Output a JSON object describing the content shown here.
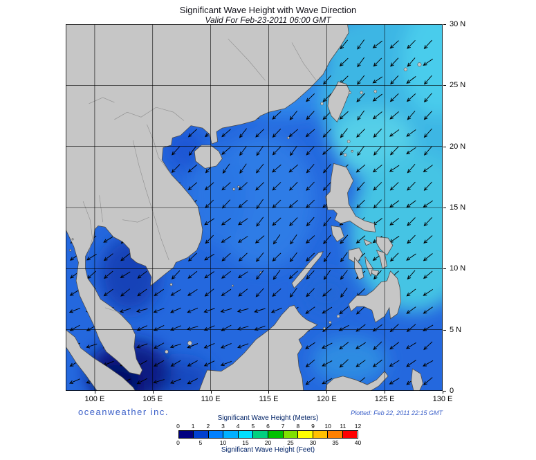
{
  "header": {
    "title": "Significant Wave Height with Wave Direction",
    "subtitle": "Valid For Feb-23-2011 06:00 GMT"
  },
  "map": {
    "extent": {
      "lon_min": 97.5,
      "lon_max": 130,
      "lat_min": 0,
      "lat_max": 30
    },
    "x_ticks": [
      {
        "label": "100 E",
        "lon": 100
      },
      {
        "label": "105 E",
        "lon": 105
      },
      {
        "label": "110 E",
        "lon": 110
      },
      {
        "label": "115 E",
        "lon": 115
      },
      {
        "label": "120 E",
        "lon": 120
      },
      {
        "label": "125 E",
        "lon": 125
      },
      {
        "label": "130 E",
        "lon": 130
      }
    ],
    "y_ticks": [
      {
        "label": "30 N",
        "lat": 30
      },
      {
        "label": "25 N",
        "lat": 25
      },
      {
        "label": "20 N",
        "lat": 20
      },
      {
        "label": "15 N",
        "lat": 15
      },
      {
        "label": "10 N",
        "lat": 10
      },
      {
        "label": "5 N",
        "lat": 5
      },
      {
        "label": "0",
        "lat": 0
      }
    ],
    "arrows": {
      "spacing_deg": 1.45,
      "length_deg": 0.95,
      "barb_deg": 0.3,
      "jitter_deg": 8,
      "lon_start": 98.3,
      "lat_start": 0.8,
      "default_dir": 224,
      "regions": [
        {
          "lon_min": 97.5,
          "lon_max": 116,
          "lat_min": 0,
          "lat_max": 7,
          "dir": 248
        },
        {
          "lon_min": 116,
          "lon_max": 130,
          "lat_min": 0,
          "lat_max": 7,
          "dir": 236
        },
        {
          "lon_min": 97.5,
          "lon_max": 113,
          "lat_min": 7,
          "lat_max": 15,
          "dir": 233
        },
        {
          "lon_min": 123,
          "lon_max": 130,
          "lat_min": 7,
          "lat_max": 30,
          "dir": 230
        }
      ]
    }
  },
  "footer": {
    "brand": "oceanweather inc.",
    "plotted": "Plotted: Feb 22, 2011 22:15 GMT"
  },
  "legend": {
    "meters_label": "Significant Wave Height (Meters)",
    "meters_ticks": [
      "0",
      "1",
      "2",
      "3",
      "4",
      "5",
      "6",
      "7",
      "8",
      "9",
      "10",
      "11",
      "12"
    ],
    "feet_label": "Significant Wave Height (Feet)",
    "feet_ticks": [
      "0",
      "5",
      "10",
      "15",
      "20",
      "25",
      "30",
      "35",
      "40"
    ],
    "colors": [
      "#000080",
      "#0040d0",
      "#0080ff",
      "#00b0ff",
      "#00e0ff",
      "#00d080",
      "#00c000",
      "#80e000",
      "#ffff00",
      "#ffc000",
      "#ff8000",
      "#ff0000"
    ]
  }
}
